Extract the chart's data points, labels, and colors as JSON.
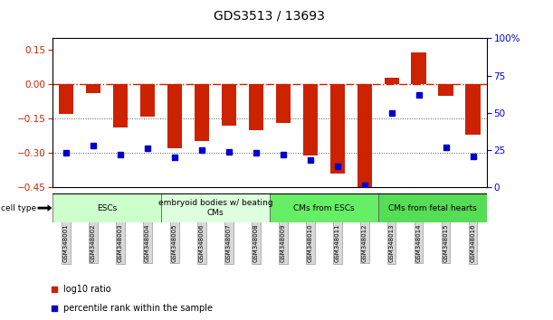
{
  "title": "GDS3513 / 13693",
  "samples": [
    "GSM348001",
    "GSM348002",
    "GSM348003",
    "GSM348004",
    "GSM348005",
    "GSM348006",
    "GSM348007",
    "GSM348008",
    "GSM348009",
    "GSM348010",
    "GSM348011",
    "GSM348012",
    "GSM348013",
    "GSM348014",
    "GSM348015",
    "GSM348016"
  ],
  "log10_ratio": [
    -0.13,
    -0.04,
    -0.19,
    -0.14,
    -0.28,
    -0.25,
    -0.18,
    -0.2,
    -0.17,
    -0.31,
    -0.39,
    -0.46,
    0.03,
    0.14,
    -0.05,
    -0.22
  ],
  "percentile_rank": [
    23,
    28,
    22,
    26,
    20,
    25,
    24,
    23,
    22,
    18,
    14,
    1,
    50,
    62,
    27,
    21
  ],
  "ylim_left": [
    -0.45,
    0.2
  ],
  "ylim_right": [
    0,
    100
  ],
  "left_yticks": [
    -0.45,
    -0.3,
    -0.15,
    0,
    0.15
  ],
  "right_yticks": [
    0,
    25,
    50,
    75,
    100
  ],
  "cell_type_groups": [
    {
      "label": "ESCs",
      "start": 0,
      "end": 4,
      "color": "#ccffcc"
    },
    {
      "label": "embryoid bodies w/ beating\nCMs",
      "start": 4,
      "end": 8,
      "color": "#ddffdd"
    },
    {
      "label": "CMs from ESCs",
      "start": 8,
      "end": 12,
      "color": "#66ee66"
    },
    {
      "label": "CMs from fetal hearts",
      "start": 12,
      "end": 16,
      "color": "#55dd55"
    }
  ],
  "bar_color": "#cc2200",
  "point_color": "#0000cc",
  "zero_line_color": "#cc2200",
  "dot_line_color": "#555555",
  "hline_lw": 0.8,
  "bar_width": 0.55,
  "marker_size": 4
}
